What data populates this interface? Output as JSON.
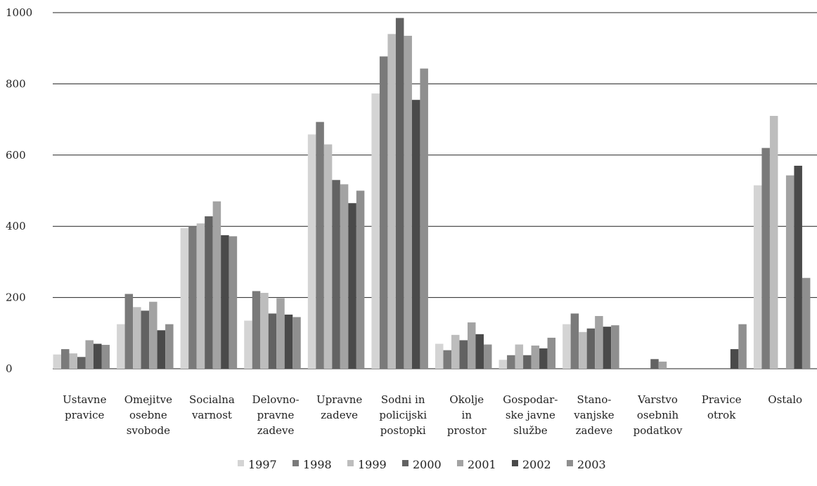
{
  "chart_data": {
    "type": "bar",
    "categories": [
      [
        "Ustavne",
        "pravice"
      ],
      [
        "Omejitve",
        "osebne",
        "svobode"
      ],
      [
        "Socialna",
        "varnost"
      ],
      [
        "Delovno-",
        "pravne",
        "zadeve"
      ],
      [
        "Upravne",
        "zadeve"
      ],
      [
        "Sodni in",
        "policijski",
        "postopki"
      ],
      [
        "Okolje",
        "in",
        "prostor"
      ],
      [
        "Gospodar-",
        "ske javne",
        "službe"
      ],
      [
        "Stano-",
        "vanjske",
        "zadeve"
      ],
      [
        "Varstvo",
        "osebnih",
        "podatkov"
      ],
      [
        "Pravice",
        "otrok"
      ],
      [
        "Ostalo"
      ]
    ],
    "series": [
      {
        "name": "1997",
        "color": "#d4d4d4",
        "values": [
          40,
          125,
          395,
          135,
          658,
          773,
          70,
          25,
          125,
          0,
          0,
          515
        ]
      },
      {
        "name": "1998",
        "color": "#7a7a7a",
        "values": [
          55,
          210,
          400,
          218,
          693,
          877,
          52,
          38,
          155,
          0,
          0,
          620
        ]
      },
      {
        "name": "1999",
        "color": "#bdbdbd",
        "values": [
          43,
          173,
          408,
          213,
          630,
          940,
          95,
          68,
          103,
          0,
          0,
          710
        ]
      },
      {
        "name": "2000",
        "color": "#626262",
        "values": [
          33,
          163,
          428,
          155,
          530,
          985,
          80,
          38,
          113,
          27,
          0,
          0
        ]
      },
      {
        "name": "2001",
        "color": "#a3a3a3",
        "values": [
          80,
          188,
          470,
          198,
          518,
          935,
          130,
          65,
          148,
          20,
          0,
          543
        ]
      },
      {
        "name": "2002",
        "color": "#4a4a4a",
        "values": [
          70,
          108,
          375,
          152,
          465,
          755,
          97,
          57,
          118,
          0,
          55,
          570
        ]
      },
      {
        "name": "2003",
        "color": "#8f8f8f",
        "values": [
          67,
          125,
          372,
          145,
          500,
          843,
          68,
          87,
          122,
          0,
          125,
          255
        ]
      }
    ],
    "yticks": [
      "0",
      "200",
      "400",
      "600",
      "800",
      "1000"
    ],
    "ylim": [
      0,
      1000
    ],
    "grid": true,
    "legend": "bottom"
  }
}
